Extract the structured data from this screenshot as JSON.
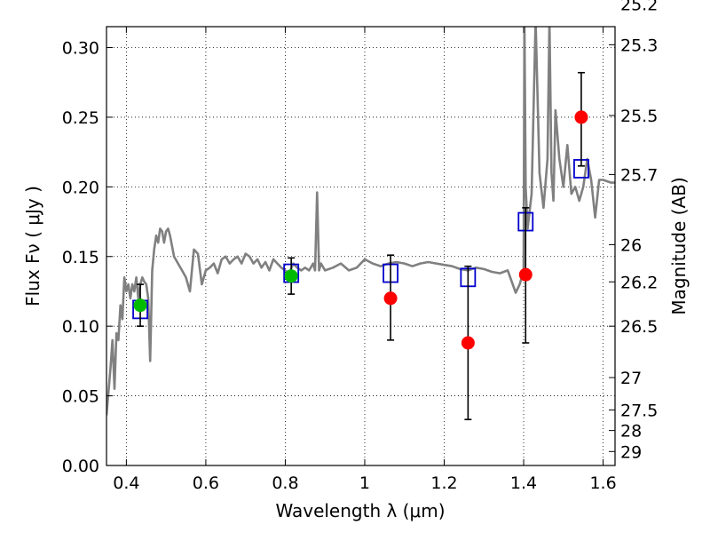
{
  "chart_data": {
    "type": "line",
    "xlabel": "Wavelength  λ (μm)",
    "ylabel": "Flux  Fν  ( μJy )",
    "y2label": "Magnitude (AB)",
    "xlim": [
      0.35,
      1.63
    ],
    "ylim": [
      0.0,
      0.315
    ],
    "grid": true,
    "x_ticks": [
      0.4,
      0.6,
      0.8,
      1.0,
      1.2,
      1.4,
      1.6
    ],
    "x_tick_labels": [
      "0.4",
      "0.6",
      "0.8",
      "1",
      "1.2",
      "1.4",
      "1.6"
    ],
    "y_ticks": [
      0.0,
      0.05,
      0.1,
      0.15,
      0.2,
      0.25,
      0.3
    ],
    "y_tick_labels": [
      "0.00",
      "0.05",
      "0.10",
      "0.15",
      "0.20",
      "0.25",
      "0.30"
    ],
    "mag_ticks": [
      {
        "label": "25.2",
        "flux": 0.3313
      },
      {
        "label": "25.3",
        "flux": 0.302
      },
      {
        "label": "25.5",
        "flux": 0.2512
      },
      {
        "label": "25.7",
        "flux": 0.2089
      },
      {
        "label": "26",
        "flux": 0.1585
      },
      {
        "label": "26.2",
        "flux": 0.1318
      },
      {
        "label": "26.5",
        "flux": 0.1
      },
      {
        "label": "27",
        "flux": 0.0631
      },
      {
        "label": "27.5",
        "flux": 0.0398
      },
      {
        "label": "28",
        "flux": 0.0251
      },
      {
        "label": "29",
        "flux": 0.01
      }
    ],
    "series": [
      {
        "kind": "spectrum",
        "color": "#808080",
        "x": [
          0.35,
          0.36,
          0.365,
          0.37,
          0.375,
          0.38,
          0.385,
          0.39,
          0.395,
          0.4,
          0.405,
          0.41,
          0.415,
          0.42,
          0.425,
          0.43,
          0.435,
          0.44,
          0.445,
          0.45,
          0.455,
          0.46,
          0.465,
          0.47,
          0.475,
          0.48,
          0.485,
          0.49,
          0.495,
          0.5,
          0.505,
          0.51,
          0.52,
          0.53,
          0.54,
          0.55,
          0.56,
          0.57,
          0.58,
          0.59,
          0.6,
          0.61,
          0.62,
          0.63,
          0.64,
          0.65,
          0.66,
          0.67,
          0.68,
          0.69,
          0.7,
          0.71,
          0.72,
          0.73,
          0.74,
          0.75,
          0.76,
          0.77,
          0.78,
          0.79,
          0.8,
          0.81,
          0.82,
          0.83,
          0.84,
          0.85,
          0.86,
          0.87,
          0.875,
          0.88,
          0.885,
          0.89,
          0.9,
          0.92,
          0.94,
          0.96,
          0.98,
          1.0,
          1.02,
          1.04,
          1.06,
          1.08,
          1.1,
          1.12,
          1.14,
          1.16,
          1.18,
          1.2,
          1.22,
          1.24,
          1.26,
          1.28,
          1.3,
          1.32,
          1.34,
          1.36,
          1.38,
          1.39,
          1.4,
          1.402,
          1.405,
          1.41,
          1.42,
          1.43,
          1.44,
          1.45,
          1.46,
          1.465,
          1.47,
          1.475,
          1.48,
          1.49,
          1.5,
          1.51,
          1.52,
          1.53,
          1.54,
          1.55,
          1.56,
          1.57,
          1.58,
          1.59,
          1.6,
          1.62,
          1.63
        ],
        "y": [
          0.036,
          0.07,
          0.09,
          0.055,
          0.095,
          0.09,
          0.115,
          0.105,
          0.135,
          0.125,
          0.13,
          0.12,
          0.13,
          0.125,
          0.135,
          0.12,
          0.13,
          0.135,
          0.132,
          0.13,
          0.12,
          0.075,
          0.14,
          0.155,
          0.165,
          0.16,
          0.17,
          0.168,
          0.16,
          0.168,
          0.17,
          0.165,
          0.15,
          0.145,
          0.14,
          0.135,
          0.125,
          0.155,
          0.152,
          0.13,
          0.14,
          0.142,
          0.145,
          0.138,
          0.148,
          0.15,
          0.145,
          0.148,
          0.15,
          0.145,
          0.152,
          0.15,
          0.145,
          0.148,
          0.142,
          0.146,
          0.14,
          0.148,
          0.145,
          0.142,
          0.14,
          0.138,
          0.145,
          0.142,
          0.14,
          0.142,
          0.14,
          0.145,
          0.14,
          0.196,
          0.14,
          0.145,
          0.14,
          0.142,
          0.145,
          0.14,
          0.142,
          0.148,
          0.145,
          0.143,
          0.145,
          0.146,
          0.145,
          0.143,
          0.145,
          0.146,
          0.145,
          0.144,
          0.143,
          0.141,
          0.14,
          0.142,
          0.141,
          0.139,
          0.138,
          0.14,
          0.124,
          0.13,
          0.14,
          0.32,
          0.2,
          0.17,
          0.195,
          0.32,
          0.21,
          0.185,
          0.22,
          0.32,
          0.21,
          0.19,
          0.255,
          0.22,
          0.2,
          0.23,
          0.195,
          0.2,
          0.19,
          0.2,
          0.22,
          0.205,
          0.178,
          0.205,
          0.205,
          0.203,
          0.203
        ]
      },
      {
        "kind": "model-photometry",
        "color": "#0000cc",
        "marker": "open-square",
        "x": [
          0.435,
          0.815,
          1.065,
          1.26,
          1.405,
          1.545
        ],
        "y": [
          0.112,
          0.138,
          0.138,
          0.135,
          0.175,
          0.213
        ]
      },
      {
        "kind": "observed-photometry",
        "color": "#ff0000",
        "marker": "filled-circle",
        "x": [
          1.065,
          1.26,
          1.405,
          1.545
        ],
        "y": [
          0.12,
          0.088,
          0.137,
          0.25
        ],
        "yerr_low": [
          0.09,
          0.033,
          0.088,
          0.215
        ],
        "yerr_high": [
          0.151,
          0.143,
          0.185,
          0.282
        ]
      },
      {
        "kind": "observed-photometry",
        "color": "#00bb00",
        "marker": "filled-circle",
        "x": [
          0.435,
          0.815
        ],
        "y": [
          0.115,
          0.136
        ],
        "yerr_low": [
          0.1,
          0.123
        ],
        "yerr_high": [
          0.13,
          0.149
        ]
      }
    ]
  }
}
